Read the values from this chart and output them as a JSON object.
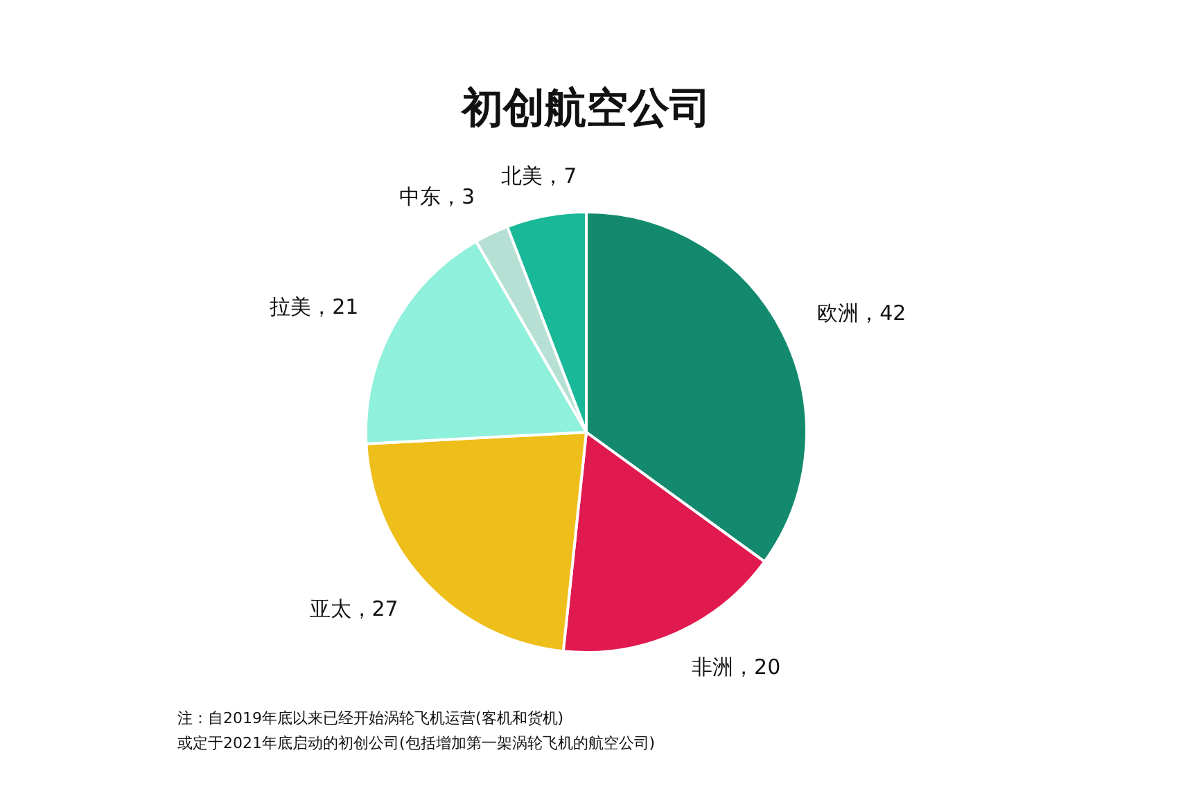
{
  "chart_data": {
    "type": "pie",
    "title": "初创航空公司",
    "categories": [
      "欧洲",
      "非洲",
      "亚太",
      "拉美",
      "中东",
      "北美"
    ],
    "values": [
      42,
      20,
      27,
      21,
      3,
      7
    ],
    "colors": [
      "#138a6e",
      "#e0194f",
      "#eebf1a",
      "#8ff0dc",
      "#b6e0d4",
      "#19b898"
    ],
    "value_labels": [
      "，42",
      "，20",
      "，27",
      "，21",
      "，3",
      "，7"
    ],
    "legend": false,
    "annotations": [
      "注：自2019年底以来已经开始涡轮飞机运营(客机和货机)",
      "或定于2021年底启动的初创公司(包括增加第一架涡轮飞机的航空公司)"
    ]
  }
}
